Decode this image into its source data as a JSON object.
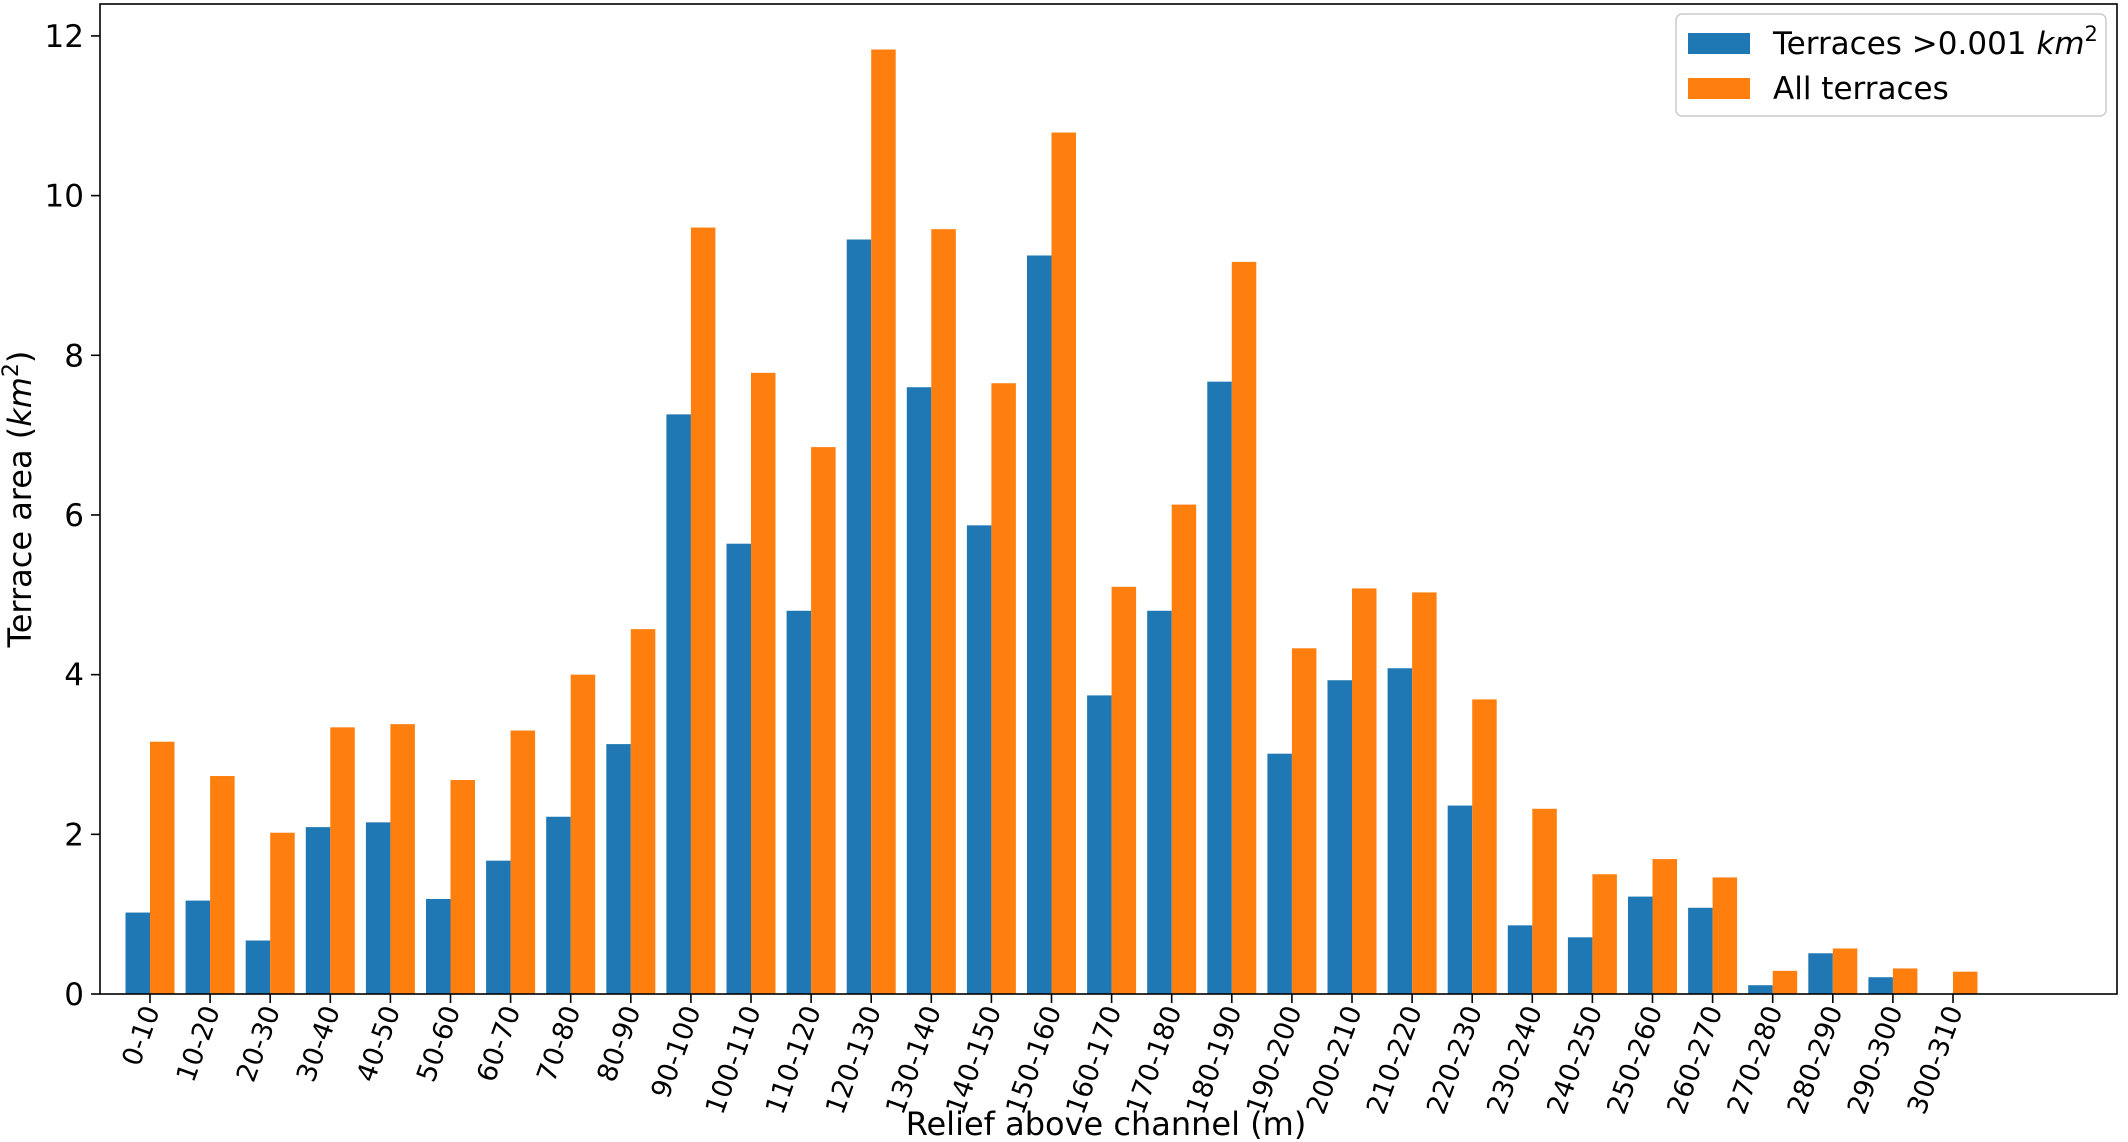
{
  "chart_data": {
    "type": "bar",
    "xlabel": "Relief above channel (m)",
    "ylabel": "Terrace area (km²)",
    "ylabel_parts": {
      "prefix": "Terrace area (",
      "unit": "km",
      "sup": "2",
      "suffix": ")"
    },
    "ylim": [
      0,
      12.4
    ],
    "yticks": [
      0,
      2,
      4,
      6,
      8,
      10,
      12
    ],
    "legend_position": "top-right",
    "grid": false,
    "categories": [
      "0-10",
      "10-20",
      "20-30",
      "30-40",
      "40-50",
      "50-60",
      "60-70",
      "70-80",
      "80-90",
      "90-100",
      "100-110",
      "110-120",
      "120-130",
      "130-140",
      "140-150",
      "150-160",
      "160-170",
      "170-180",
      "180-190",
      "190-200",
      "200-210",
      "210-220",
      "220-230",
      "230-240",
      "240-250",
      "250-260",
      "260-270",
      "270-280",
      "280-290",
      "290-300",
      "300-310"
    ],
    "series": [
      {
        "name": "Terraces >0.001 km²",
        "legend_parts": {
          "prefix": "Terraces >0.001 ",
          "unit": "km",
          "sup": "2"
        },
        "color": "#1f77b4",
        "values": [
          1.02,
          1.17,
          0.67,
          2.09,
          2.15,
          1.19,
          1.67,
          2.22,
          3.13,
          7.26,
          5.64,
          4.8,
          9.45,
          7.6,
          5.87,
          9.25,
          3.74,
          4.8,
          7.67,
          3.01,
          3.93,
          4.08,
          2.36,
          0.86,
          0.71,
          1.22,
          1.08,
          0.11,
          0.51,
          0.21,
          0.0
        ]
      },
      {
        "name": "All terraces",
        "color": "#ff7f0e",
        "values": [
          3.16,
          2.73,
          2.02,
          3.34,
          3.38,
          2.68,
          3.3,
          4.0,
          4.57,
          9.6,
          7.78,
          6.85,
          11.83,
          9.58,
          7.65,
          10.79,
          5.1,
          6.13,
          9.17,
          4.33,
          5.08,
          5.03,
          3.69,
          2.32,
          1.5,
          1.69,
          1.46,
          0.29,
          0.57,
          0.32,
          0.28
        ]
      }
    ]
  }
}
